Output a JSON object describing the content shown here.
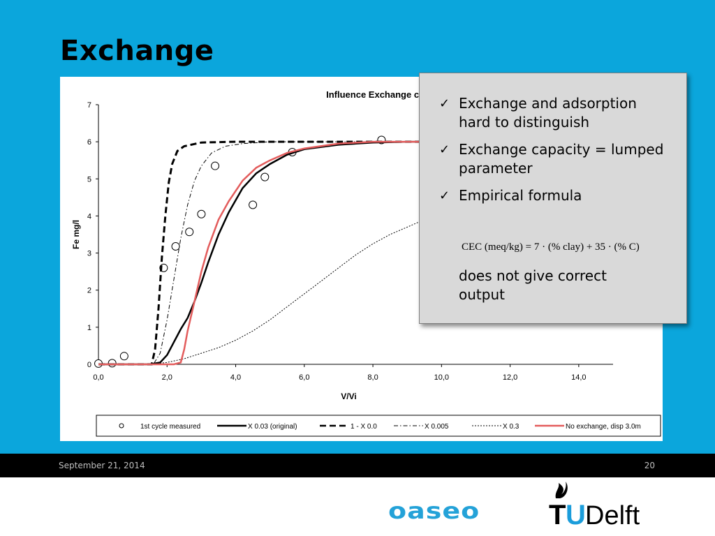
{
  "slide": {
    "title": "Exchange",
    "footer_date": "September 21, 2014",
    "page_number": "20",
    "logos": {
      "oaseo": "oaseo",
      "tudelft_t": "T",
      "tudelft_u": "U",
      "tudelft_rest": "Delft"
    }
  },
  "callout": {
    "bullets": [
      "Exchange and adsorption hard to distinguish",
      "Exchange capacity = lumped parameter",
      "Empirical formula"
    ],
    "formula": "CEC (meq/kg) = 7 · (% clay) + 35 · (% C)",
    "after_text": "does not give correct output",
    "check_symbol": "✓"
  },
  "chart_data": {
    "type": "line",
    "title": "Influence Exchange capacity",
    "xlabel": "V/Vi",
    "ylabel": "Fe mg/l",
    "xlim": [
      0,
      15
    ],
    "ylim": [
      0,
      7
    ],
    "xticks": [
      "0,0",
      "2,0",
      "4,0",
      "6,0",
      "8,0",
      "10,0",
      "12,0",
      "14,0"
    ],
    "yticks": [
      "0",
      "1",
      "2",
      "3",
      "4",
      "5",
      "6",
      "7"
    ],
    "legend_position": "bottom",
    "series": [
      {
        "name": "1st cycle measured",
        "kind": "markers",
        "color": "#000000",
        "points": [
          [
            0.0,
            0.02
          ],
          [
            0.4,
            0.03
          ],
          [
            0.75,
            0.22
          ],
          [
            1.9,
            2.6
          ],
          [
            2.25,
            3.18
          ],
          [
            2.65,
            3.57
          ],
          [
            3.0,
            4.05
          ],
          [
            3.4,
            5.35
          ],
          [
            4.5,
            4.3
          ],
          [
            4.85,
            5.05
          ],
          [
            5.65,
            5.72
          ],
          [
            8.25,
            6.05
          ]
        ]
      },
      {
        "name": "X 0.03 (original)",
        "kind": "line",
        "color": "#000000",
        "dash": "",
        "width": 2.5,
        "points": [
          [
            0,
            0
          ],
          [
            1.5,
            0
          ],
          [
            1.8,
            0.05
          ],
          [
            2.0,
            0.25
          ],
          [
            2.2,
            0.6
          ],
          [
            2.4,
            0.95
          ],
          [
            2.6,
            1.25
          ],
          [
            2.8,
            1.7
          ],
          [
            3.0,
            2.2
          ],
          [
            3.2,
            2.75
          ],
          [
            3.5,
            3.5
          ],
          [
            3.8,
            4.1
          ],
          [
            4.2,
            4.75
          ],
          [
            4.6,
            5.15
          ],
          [
            5.0,
            5.4
          ],
          [
            5.5,
            5.65
          ],
          [
            6.0,
            5.8
          ],
          [
            7.0,
            5.92
          ],
          [
            8.0,
            5.98
          ],
          [
            9.0,
            6.0
          ],
          [
            10.0,
            6.0
          ]
        ]
      },
      {
        "name": "1 - X 0.0",
        "kind": "line",
        "color": "#000000",
        "dash": "9,5",
        "width": 3,
        "points": [
          [
            0,
            0
          ],
          [
            1.55,
            0
          ],
          [
            1.65,
            0.4
          ],
          [
            1.75,
            1.5
          ],
          [
            1.85,
            2.9
          ],
          [
            1.95,
            4.0
          ],
          [
            2.05,
            4.9
          ],
          [
            2.15,
            5.4
          ],
          [
            2.3,
            5.75
          ],
          [
            2.5,
            5.88
          ],
          [
            3.0,
            5.98
          ],
          [
            4.0,
            6.0
          ],
          [
            8.0,
            6.0
          ],
          [
            10.0,
            6.0
          ]
        ]
      },
      {
        "name": "X 0.005",
        "kind": "line",
        "color": "#000000",
        "dash": "6,3,1.5,3",
        "width": 1,
        "points": [
          [
            0,
            0
          ],
          [
            1.6,
            0
          ],
          [
            1.8,
            0.3
          ],
          [
            2.0,
            1.2
          ],
          [
            2.2,
            2.3
          ],
          [
            2.4,
            3.4
          ],
          [
            2.6,
            4.3
          ],
          [
            2.8,
            4.95
          ],
          [
            3.0,
            5.35
          ],
          [
            3.3,
            5.7
          ],
          [
            3.7,
            5.88
          ],
          [
            4.2,
            5.95
          ],
          [
            5.0,
            6.0
          ],
          [
            8.0,
            6.0
          ],
          [
            10.0,
            6.0
          ]
        ]
      },
      {
        "name": "X 0.3",
        "kind": "line",
        "color": "#000000",
        "dash": "2,2",
        "width": 1,
        "points": [
          [
            0,
            0
          ],
          [
            1.5,
            0
          ],
          [
            2.0,
            0.05
          ],
          [
            2.5,
            0.15
          ],
          [
            3.0,
            0.3
          ],
          [
            3.5,
            0.45
          ],
          [
            4.0,
            0.65
          ],
          [
            4.5,
            0.9
          ],
          [
            5.0,
            1.2
          ],
          [
            5.5,
            1.55
          ],
          [
            6.0,
            1.9
          ],
          [
            6.5,
            2.25
          ],
          [
            7.0,
            2.6
          ],
          [
            7.5,
            2.95
          ],
          [
            8.0,
            3.25
          ],
          [
            8.5,
            3.5
          ],
          [
            9.0,
            3.7
          ],
          [
            9.5,
            3.9
          ],
          [
            9.8,
            4.0
          ]
        ]
      },
      {
        "name": "No exchange, disp 3.0m",
        "kind": "line",
        "color": "#e35c5c",
        "dash": "",
        "width": 2.5,
        "points": [
          [
            0,
            0
          ],
          [
            2.2,
            0
          ],
          [
            2.4,
            0.05
          ],
          [
            2.5,
            0.4
          ],
          [
            2.6,
            0.9
          ],
          [
            2.8,
            1.7
          ],
          [
            3.0,
            2.5
          ],
          [
            3.2,
            3.15
          ],
          [
            3.5,
            3.9
          ],
          [
            3.8,
            4.4
          ],
          [
            4.2,
            4.95
          ],
          [
            4.6,
            5.3
          ],
          [
            5.0,
            5.5
          ],
          [
            5.5,
            5.7
          ],
          [
            6.0,
            5.82
          ],
          [
            7.0,
            5.95
          ],
          [
            8.0,
            6.0
          ],
          [
            10.0,
            6.0
          ]
        ]
      }
    ]
  }
}
